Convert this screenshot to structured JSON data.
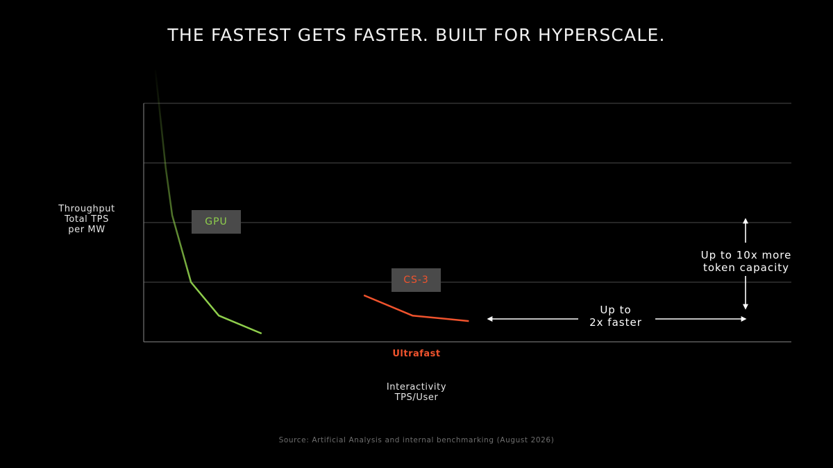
{
  "title": "THE FASTEST GETS FASTER. BUILT FOR HYPERSCALE.",
  "y_axis_label": [
    "Throughput",
    "Total TPS",
    "per MW"
  ],
  "x_axis_label": [
    "Interactivity",
    "TPS/User"
  ],
  "ultrafast_label": "Ultrafast",
  "source": "Source: Artificial Analysis and internal benchmarking (August 2026)",
  "annotations": {
    "capacity": [
      "Up to 10x more",
      "token capacity"
    ],
    "speed": [
      "Up to",
      "2x faster"
    ]
  },
  "colors": {
    "gpu": "#8fcf4c",
    "cs3": "#f0532d",
    "grid": "#4d4d4d",
    "axis": "#8a8a8a"
  },
  "chart_data": {
    "type": "line",
    "title": "",
    "xlabel": "Interactivity TPS/User",
    "ylabel": "Throughput Total TPS per MW",
    "xlim": [
      0,
      100
    ],
    "ylim": [
      0,
      100
    ],
    "grid": true,
    "gridlines_y": [
      25,
      50,
      75,
      100
    ],
    "series": [
      {
        "name": "GPU",
        "x": [
          1.8,
          3.4,
          4.4,
          7.3,
          11.6,
          18.2
        ],
        "y": [
          114,
          73,
          53,
          25,
          11,
          3.5
        ]
      },
      {
        "name": "CS-3",
        "x": [
          34,
          41.5,
          50.2
        ],
        "y": [
          19.5,
          11,
          8.7
        ]
      }
    ]
  }
}
